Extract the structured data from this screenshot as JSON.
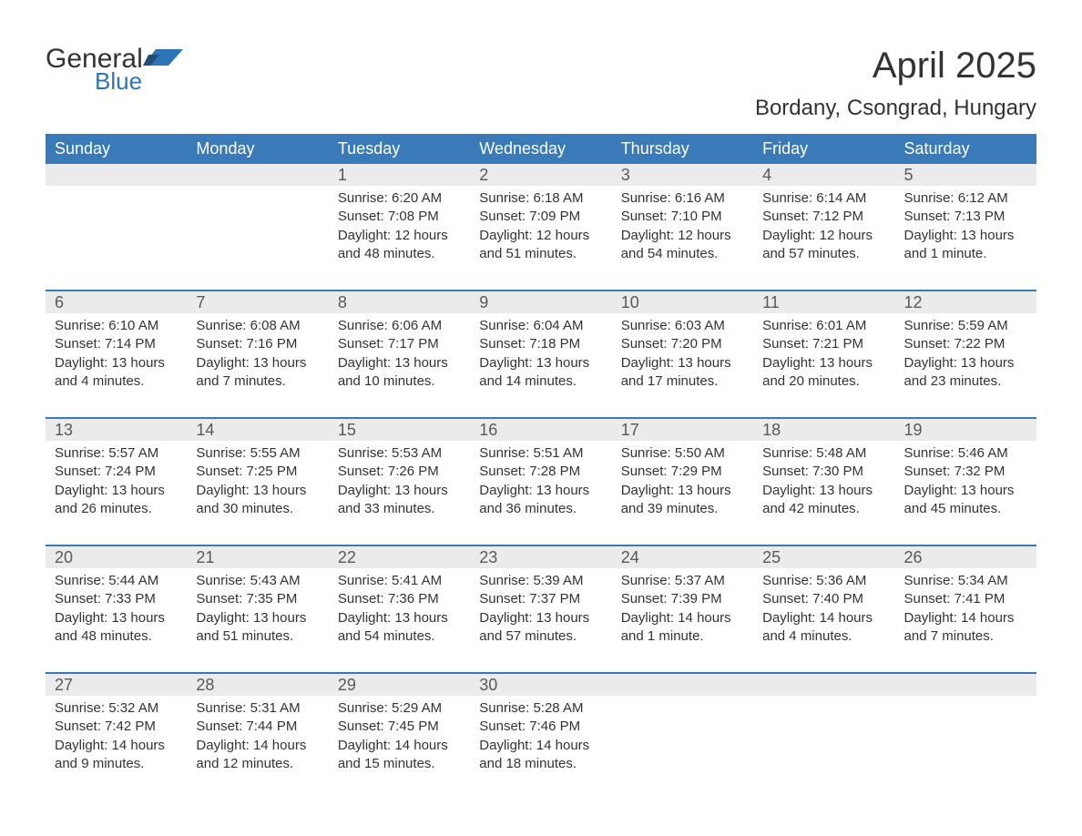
{
  "logo": {
    "text1": "General",
    "text2": "Blue",
    "text1_color": "#333333",
    "text2_color": "#2e75b6",
    "icon_color": "#2e75b6"
  },
  "title": "April 2025",
  "location": "Bordany, Csongrad, Hungary",
  "colors": {
    "header_bg": "#3a7ab8",
    "header_text": "#ffffff",
    "daynum_bg": "#ebebeb",
    "daynum_text": "#595959",
    "body_text": "#333333",
    "week_border": "#3a7ab8",
    "page_bg": "#ffffff"
  },
  "day_headers": [
    "Sunday",
    "Monday",
    "Tuesday",
    "Wednesday",
    "Thursday",
    "Friday",
    "Saturday"
  ],
  "weeks": [
    [
      {
        "day": "",
        "lines": []
      },
      {
        "day": "",
        "lines": []
      },
      {
        "day": "1",
        "lines": [
          "Sunrise: 6:20 AM",
          "Sunset: 7:08 PM",
          "Daylight: 12 hours and 48 minutes."
        ]
      },
      {
        "day": "2",
        "lines": [
          "Sunrise: 6:18 AM",
          "Sunset: 7:09 PM",
          "Daylight: 12 hours and 51 minutes."
        ]
      },
      {
        "day": "3",
        "lines": [
          "Sunrise: 6:16 AM",
          "Sunset: 7:10 PM",
          "Daylight: 12 hours and 54 minutes."
        ]
      },
      {
        "day": "4",
        "lines": [
          "Sunrise: 6:14 AM",
          "Sunset: 7:12 PM",
          "Daylight: 12 hours and 57 minutes."
        ]
      },
      {
        "day": "5",
        "lines": [
          "Sunrise: 6:12 AM",
          "Sunset: 7:13 PM",
          "Daylight: 13 hours and 1 minute."
        ]
      }
    ],
    [
      {
        "day": "6",
        "lines": [
          "Sunrise: 6:10 AM",
          "Sunset: 7:14 PM",
          "Daylight: 13 hours and 4 minutes."
        ]
      },
      {
        "day": "7",
        "lines": [
          "Sunrise: 6:08 AM",
          "Sunset: 7:16 PM",
          "Daylight: 13 hours and 7 minutes."
        ]
      },
      {
        "day": "8",
        "lines": [
          "Sunrise: 6:06 AM",
          "Sunset: 7:17 PM",
          "Daylight: 13 hours and 10 minutes."
        ]
      },
      {
        "day": "9",
        "lines": [
          "Sunrise: 6:04 AM",
          "Sunset: 7:18 PM",
          "Daylight: 13 hours and 14 minutes."
        ]
      },
      {
        "day": "10",
        "lines": [
          "Sunrise: 6:03 AM",
          "Sunset: 7:20 PM",
          "Daylight: 13 hours and 17 minutes."
        ]
      },
      {
        "day": "11",
        "lines": [
          "Sunrise: 6:01 AM",
          "Sunset: 7:21 PM",
          "Daylight: 13 hours and 20 minutes."
        ]
      },
      {
        "day": "12",
        "lines": [
          "Sunrise: 5:59 AM",
          "Sunset: 7:22 PM",
          "Daylight: 13 hours and 23 minutes."
        ]
      }
    ],
    [
      {
        "day": "13",
        "lines": [
          "Sunrise: 5:57 AM",
          "Sunset: 7:24 PM",
          "Daylight: 13 hours and 26 minutes."
        ]
      },
      {
        "day": "14",
        "lines": [
          "Sunrise: 5:55 AM",
          "Sunset: 7:25 PM",
          "Daylight: 13 hours and 30 minutes."
        ]
      },
      {
        "day": "15",
        "lines": [
          "Sunrise: 5:53 AM",
          "Sunset: 7:26 PM",
          "Daylight: 13 hours and 33 minutes."
        ]
      },
      {
        "day": "16",
        "lines": [
          "Sunrise: 5:51 AM",
          "Sunset: 7:28 PM",
          "Daylight: 13 hours and 36 minutes."
        ]
      },
      {
        "day": "17",
        "lines": [
          "Sunrise: 5:50 AM",
          "Sunset: 7:29 PM",
          "Daylight: 13 hours and 39 minutes."
        ]
      },
      {
        "day": "18",
        "lines": [
          "Sunrise: 5:48 AM",
          "Sunset: 7:30 PM",
          "Daylight: 13 hours and 42 minutes."
        ]
      },
      {
        "day": "19",
        "lines": [
          "Sunrise: 5:46 AM",
          "Sunset: 7:32 PM",
          "Daylight: 13 hours and 45 minutes."
        ]
      }
    ],
    [
      {
        "day": "20",
        "lines": [
          "Sunrise: 5:44 AM",
          "Sunset: 7:33 PM",
          "Daylight: 13 hours and 48 minutes."
        ]
      },
      {
        "day": "21",
        "lines": [
          "Sunrise: 5:43 AM",
          "Sunset: 7:35 PM",
          "Daylight: 13 hours and 51 minutes."
        ]
      },
      {
        "day": "22",
        "lines": [
          "Sunrise: 5:41 AM",
          "Sunset: 7:36 PM",
          "Daylight: 13 hours and 54 minutes."
        ]
      },
      {
        "day": "23",
        "lines": [
          "Sunrise: 5:39 AM",
          "Sunset: 7:37 PM",
          "Daylight: 13 hours and 57 minutes."
        ]
      },
      {
        "day": "24",
        "lines": [
          "Sunrise: 5:37 AM",
          "Sunset: 7:39 PM",
          "Daylight: 14 hours and 1 minute."
        ]
      },
      {
        "day": "25",
        "lines": [
          "Sunrise: 5:36 AM",
          "Sunset: 7:40 PM",
          "Daylight: 14 hours and 4 minutes."
        ]
      },
      {
        "day": "26",
        "lines": [
          "Sunrise: 5:34 AM",
          "Sunset: 7:41 PM",
          "Daylight: 14 hours and 7 minutes."
        ]
      }
    ],
    [
      {
        "day": "27",
        "lines": [
          "Sunrise: 5:32 AM",
          "Sunset: 7:42 PM",
          "Daylight: 14 hours and 9 minutes."
        ]
      },
      {
        "day": "28",
        "lines": [
          "Sunrise: 5:31 AM",
          "Sunset: 7:44 PM",
          "Daylight: 14 hours and 12 minutes."
        ]
      },
      {
        "day": "29",
        "lines": [
          "Sunrise: 5:29 AM",
          "Sunset: 7:45 PM",
          "Daylight: 14 hours and 15 minutes."
        ]
      },
      {
        "day": "30",
        "lines": [
          "Sunrise: 5:28 AM",
          "Sunset: 7:46 PM",
          "Daylight: 14 hours and 18 minutes."
        ]
      },
      {
        "day": "",
        "lines": []
      },
      {
        "day": "",
        "lines": []
      },
      {
        "day": "",
        "lines": []
      }
    ]
  ]
}
